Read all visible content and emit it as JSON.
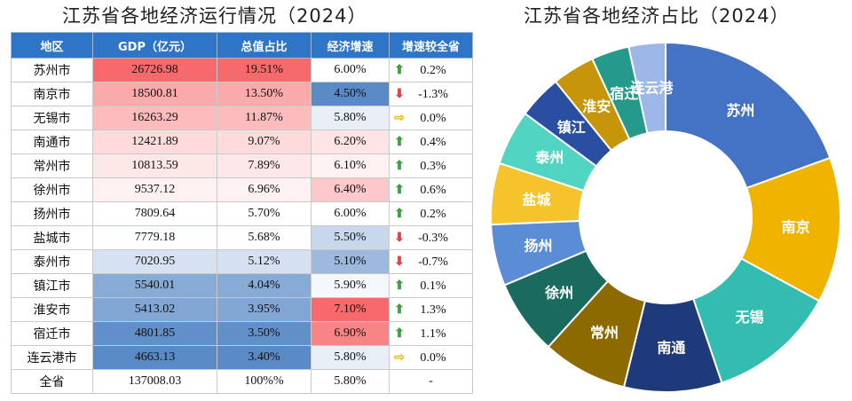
{
  "table_title": "江苏省各地经济运行情况（2024）",
  "chart_title": "江苏省各地经济占比（2024）",
  "colors": {
    "header_bg": "#2E75C8",
    "up": "#3BA33B",
    "down": "#E04444",
    "flat": "#F2B417",
    "heat_high": "#F8696B",
    "heat_mid": "#FFFFFF",
    "heat_low": "#5A8AC6"
  },
  "table": {
    "columns": [
      "地区",
      "GDP（亿元）",
      "总值占比",
      "经济增速",
      "增速较全省"
    ],
    "rows": [
      {
        "region": "苏州市",
        "gdp": "26726.98",
        "share": "19.51%",
        "growth": "6.00%",
        "diff": "0.2%",
        "dir": "up",
        "gdp_num": 26726.98,
        "share_num": 19.51,
        "growth_num": 6.0
      },
      {
        "region": "南京市",
        "gdp": "18500.81",
        "share": "13.50%",
        "growth": "4.50%",
        "diff": "-1.3%",
        "dir": "down",
        "gdp_num": 18500.81,
        "share_num": 13.5,
        "growth_num": 4.5
      },
      {
        "region": "无锡市",
        "gdp": "16263.29",
        "share": "11.87%",
        "growth": "5.80%",
        "diff": "0.0%",
        "dir": "flat",
        "gdp_num": 16263.29,
        "share_num": 11.87,
        "growth_num": 5.8
      },
      {
        "region": "南通市",
        "gdp": "12421.89",
        "share": "9.07%",
        "growth": "6.20%",
        "diff": "0.4%",
        "dir": "up",
        "gdp_num": 12421.89,
        "share_num": 9.07,
        "growth_num": 6.2
      },
      {
        "region": "常州市",
        "gdp": "10813.59",
        "share": "7.89%",
        "growth": "6.10%",
        "diff": "0.3%",
        "dir": "up",
        "gdp_num": 10813.59,
        "share_num": 7.89,
        "growth_num": 6.1
      },
      {
        "region": "徐州市",
        "gdp": "9537.12",
        "share": "6.96%",
        "growth": "6.40%",
        "diff": "0.6%",
        "dir": "up",
        "gdp_num": 9537.12,
        "share_num": 6.96,
        "growth_num": 6.4
      },
      {
        "region": "扬州市",
        "gdp": "7809.64",
        "share": "5.70%",
        "growth": "6.00%",
        "diff": "0.2%",
        "dir": "up",
        "gdp_num": 7809.64,
        "share_num": 5.7,
        "growth_num": 6.0
      },
      {
        "region": "盐城市",
        "gdp": "7779.18",
        "share": "5.68%",
        "growth": "5.50%",
        "diff": "-0.3%",
        "dir": "down",
        "gdp_num": 7779.18,
        "share_num": 5.68,
        "growth_num": 5.5
      },
      {
        "region": "泰州市",
        "gdp": "7020.95",
        "share": "5.12%",
        "growth": "5.10%",
        "diff": "-0.7%",
        "dir": "down",
        "gdp_num": 7020.95,
        "share_num": 5.12,
        "growth_num": 5.1
      },
      {
        "region": "镇江市",
        "gdp": "5540.01",
        "share": "4.04%",
        "growth": "5.90%",
        "diff": "0.1%",
        "dir": "up",
        "gdp_num": 5540.01,
        "share_num": 4.04,
        "growth_num": 5.9
      },
      {
        "region": "淮安市",
        "gdp": "5413.02",
        "share": "3.95%",
        "growth": "7.10%",
        "diff": "1.3%",
        "dir": "up",
        "gdp_num": 5413.02,
        "share_num": 3.95,
        "growth_num": 7.1
      },
      {
        "region": "宿迁市",
        "gdp": "4801.85",
        "share": "3.50%",
        "growth": "6.90%",
        "diff": "1.1%",
        "dir": "up",
        "gdp_num": 4801.85,
        "share_num": 3.5,
        "growth_num": 6.9
      },
      {
        "region": "连云港市",
        "gdp": "4663.13",
        "share": "3.40%",
        "growth": "5.80%",
        "diff": "0.0%",
        "dir": "flat",
        "gdp_num": 4663.13,
        "share_num": 3.4,
        "growth_num": 5.8
      }
    ],
    "total": {
      "region": "全省",
      "gdp": "137008.03",
      "share": "100%%",
      "growth": "5.80%",
      "diff": "-"
    }
  },
  "chart_data": {
    "type": "pie",
    "variant": "donut",
    "title": "江苏省各地经济占比（2024）",
    "categories": [
      "苏州",
      "南京",
      "无锡",
      "南通",
      "常州",
      "徐州",
      "扬州",
      "盐城",
      "泰州",
      "镇江",
      "淮安",
      "宿迁",
      "连云港"
    ],
    "values": [
      26726.98,
      18500.81,
      16263.29,
      12421.89,
      10813.59,
      9537.12,
      7809.64,
      7779.18,
      7020.95,
      5540.01,
      5413.02,
      4801.85,
      4663.13
    ],
    "colors": [
      "#4472C4",
      "#F0B400",
      "#33BDB0",
      "#1F3A7A",
      "#8C6A00",
      "#1A6B5E",
      "#5B8DD6",
      "#F5C42C",
      "#52D4C2",
      "#2B4FA0",
      "#C7950A",
      "#25998A",
      "#9DB8E8"
    ]
  }
}
